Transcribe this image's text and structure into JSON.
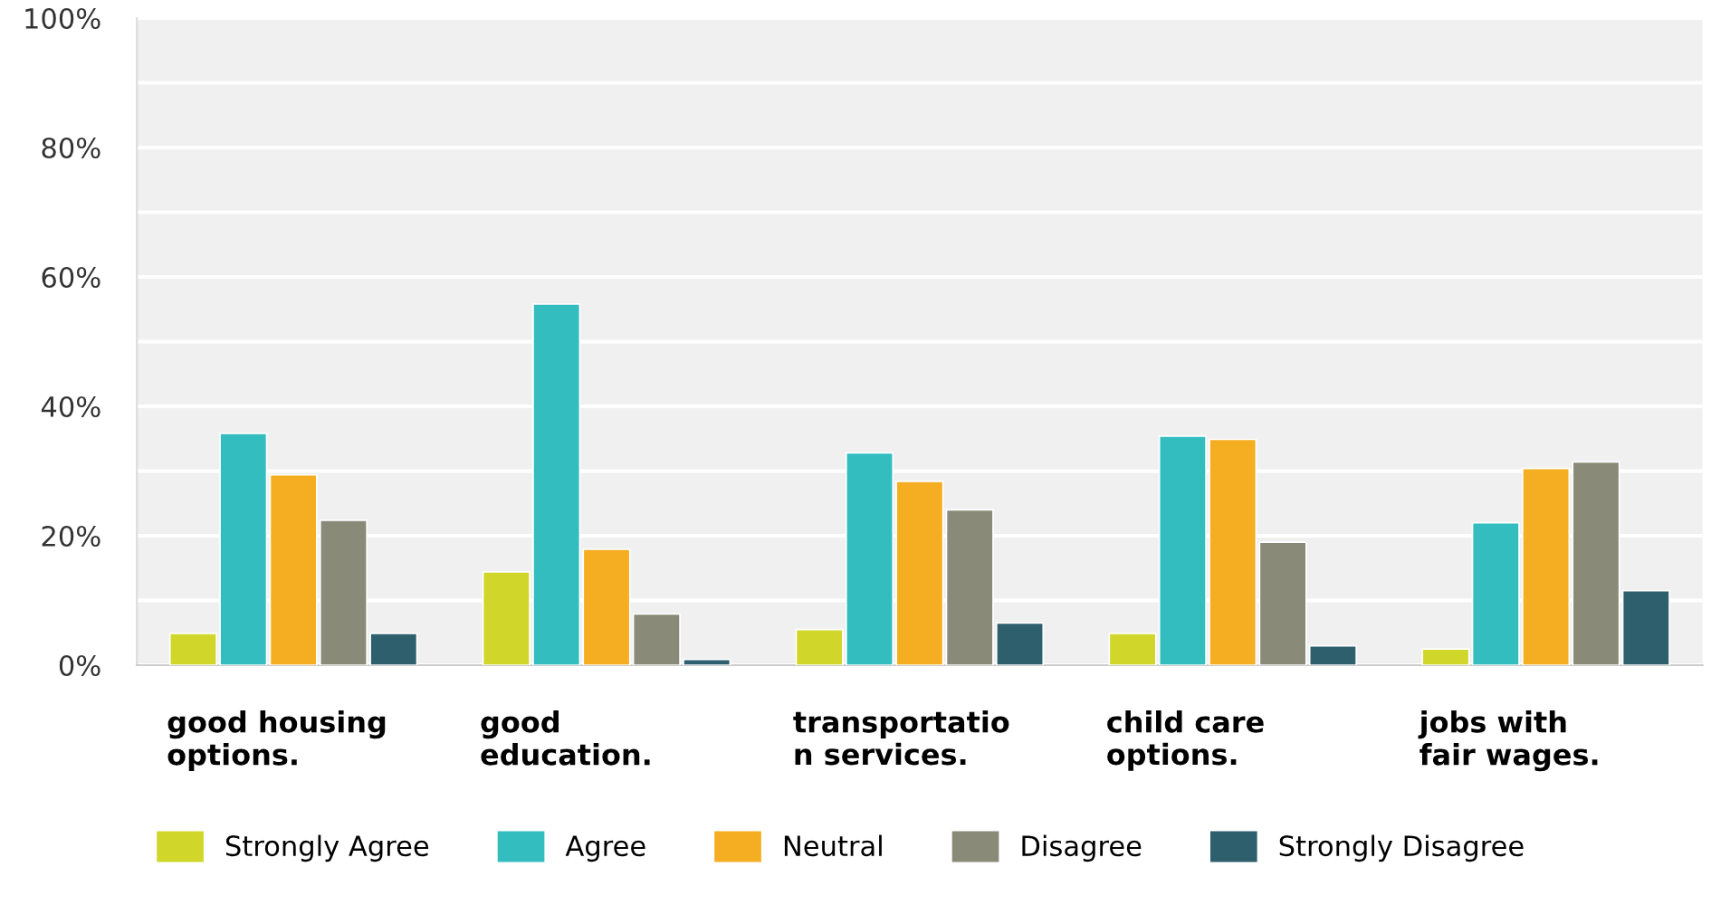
{
  "chart_data": {
    "type": "bar",
    "categories": [
      "good housing\noptions.",
      "good\neducation.",
      "transportatio\nn services.",
      "child care\noptions.",
      "jobs with\nfair wages."
    ],
    "series": [
      {
        "name": "Strongly Agree",
        "color": "#d0d72a",
        "values": [
          4.9,
          14.4,
          5.5,
          4.9,
          2.5
        ]
      },
      {
        "name": "Agree",
        "color": "#33bdbf",
        "values": [
          35.8,
          55.8,
          32.8,
          35.4,
          22.0
        ]
      },
      {
        "name": "Neutral",
        "color": "#f5ae22",
        "values": [
          29.4,
          17.9,
          28.4,
          34.9,
          30.4
        ]
      },
      {
        "name": "Disagree",
        "color": "#8a8a78",
        "values": [
          22.4,
          7.9,
          24.0,
          19.0,
          31.4
        ]
      },
      {
        "name": "Strongly Disagree",
        "color": "#2e5f6c",
        "values": [
          4.9,
          0.9,
          6.5,
          3.0,
          11.5
        ]
      }
    ],
    "ylim": [
      0,
      100
    ],
    "yticks": [
      {
        "value": 0,
        "label": "0%"
      },
      {
        "value": 10,
        "label": null
      },
      {
        "value": 20,
        "label": "20%"
      },
      {
        "value": 30,
        "label": null
      },
      {
        "value": 40,
        "label": "40%"
      },
      {
        "value": 50,
        "label": null
      },
      {
        "value": 60,
        "label": "60%"
      },
      {
        "value": 70,
        "label": null
      },
      {
        "value": 80,
        "label": "80%"
      },
      {
        "value": 90,
        "label": null
      },
      {
        "value": 100,
        "label": "100%"
      }
    ],
    "grid": "y",
    "legend": "bottom"
  }
}
